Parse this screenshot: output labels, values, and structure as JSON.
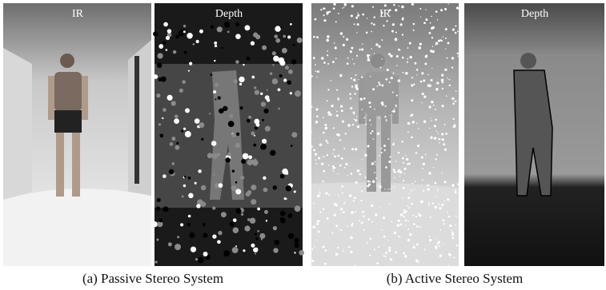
{
  "panels": [
    {
      "caption": "(a) Passive Stereo System",
      "images": [
        {
          "label": "IR"
        },
        {
          "label": "Depth"
        }
      ]
    },
    {
      "caption": "(b) Active Stereo System",
      "images": [
        {
          "label": "IR"
        },
        {
          "label": "Depth"
        }
      ]
    }
  ]
}
